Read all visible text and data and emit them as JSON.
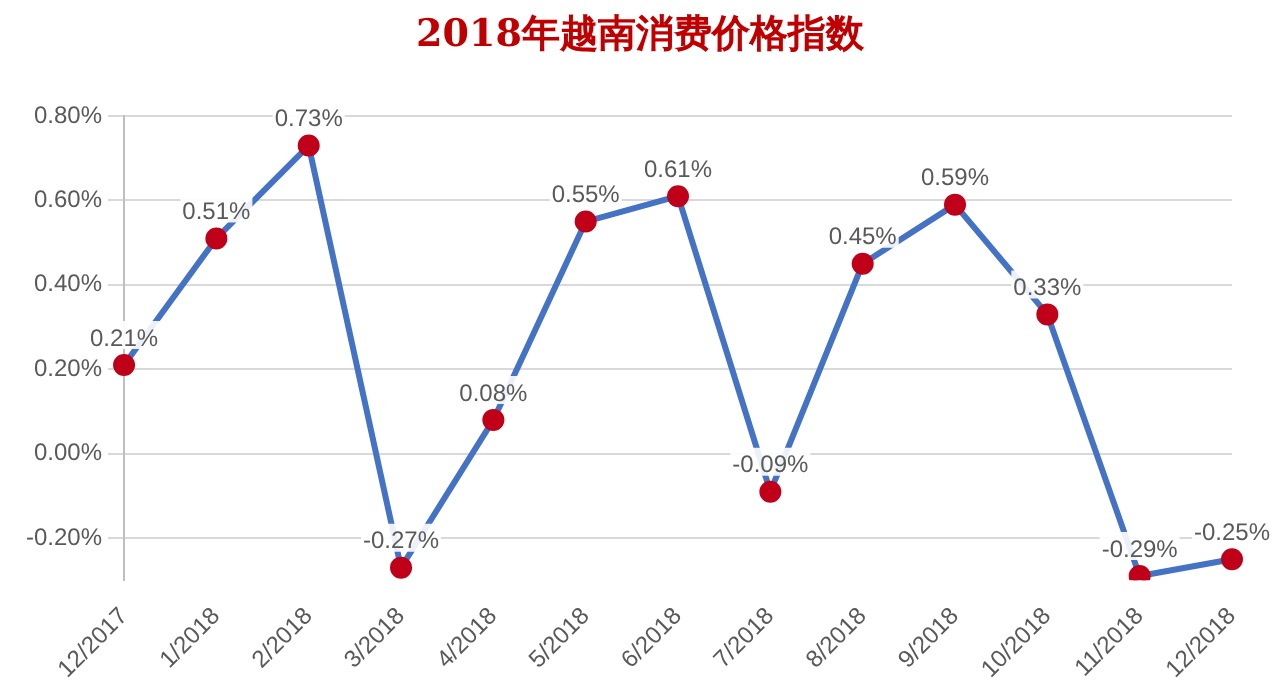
{
  "chart_data": {
    "type": "line",
    "title": "2018年越南消费价格指数",
    "categories": [
      "12/2017",
      "1/2018",
      "2/2018",
      "3/2018",
      "4/2018",
      "5/2018",
      "6/2018",
      "7/2018",
      "8/2018",
      "9/2018",
      "10/2018",
      "11/2018",
      "12/2018"
    ],
    "series": [
      {
        "color": "#4472c4",
        "values": [
          0.21,
          0.51,
          0.73,
          -0.27,
          0.08,
          0.55,
          0.61,
          -0.09,
          0.45,
          0.59,
          0.33,
          -0.29,
          -0.25
        ],
        "value_labels": [
          "0.21%",
          "0.51%",
          "0.73%",
          "-0.27%",
          "0.08%",
          "0.55%",
          "0.61%",
          "-0.09%",
          "0.45%",
          "0.59%",
          "0.33%",
          "-0.29%",
          "-0.25%"
        ]
      }
    ],
    "ylim": [
      -0.3,
      0.8
    ],
    "yticks": [
      {
        "value": -0.2,
        "label": "-0.20%"
      },
      {
        "value": 0,
        "label": "0.00%"
      },
      {
        "value": 0.2,
        "label": "0.20%"
      },
      {
        "value": 0.4,
        "label": "0.40%"
      },
      {
        "value": 0.6,
        "label": "0.60%"
      },
      {
        "value": 0.8,
        "label": "0.80%"
      }
    ],
    "grid": "y",
    "legend": false,
    "marker": "circle",
    "line_style": "solid"
  }
}
